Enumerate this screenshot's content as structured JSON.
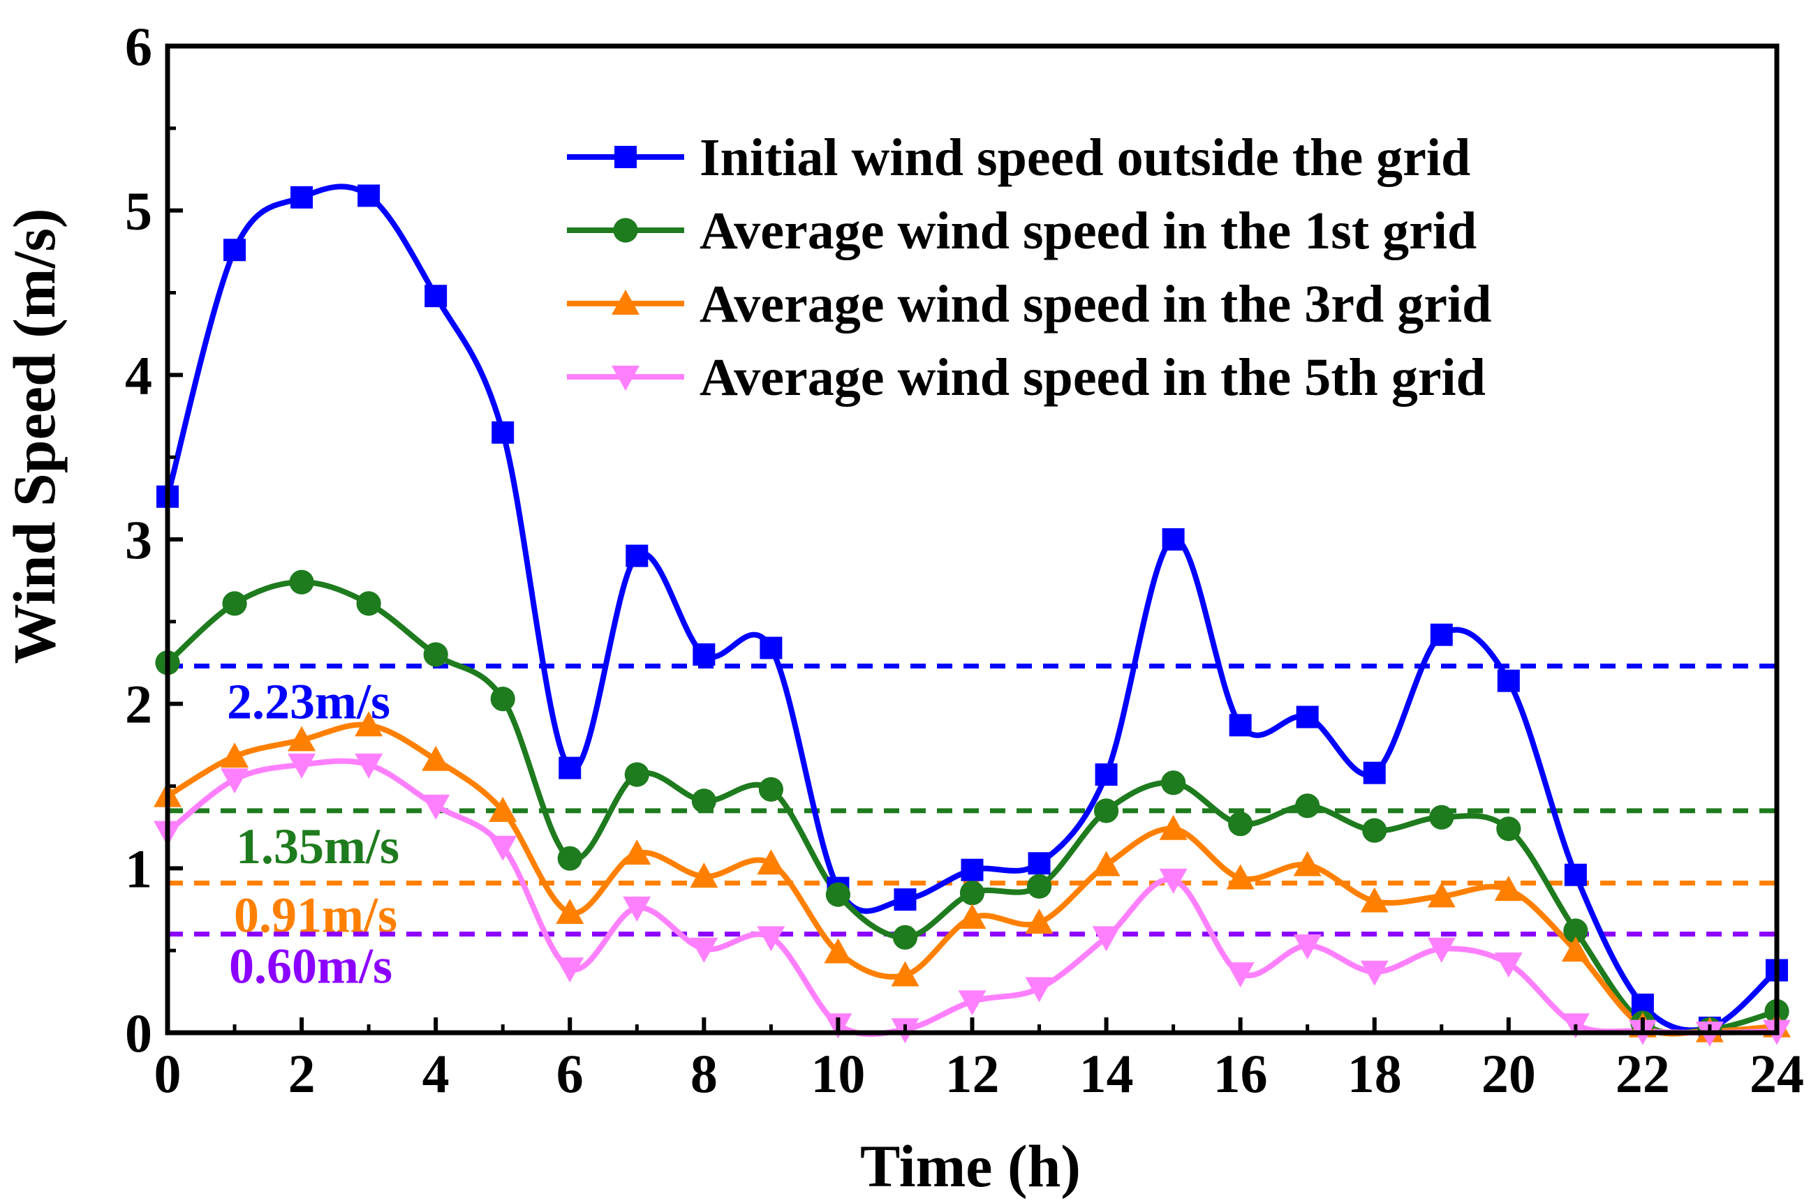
{
  "chart_data": {
    "type": "line",
    "xlabel": "Time (h)",
    "ylabel": "Wind Speed (m/s)",
    "xlim": [
      0,
      24
    ],
    "ylim": [
      0,
      6
    ],
    "xticks": [
      "0",
      "2",
      "4",
      "6",
      "8",
      "10",
      "12",
      "14",
      "16",
      "18",
      "20",
      "22",
      "24"
    ],
    "yticks": [
      "0",
      "1",
      "2",
      "3",
      "4",
      "5",
      "6"
    ],
    "x": [
      0,
      1,
      2,
      3,
      4,
      5,
      6,
      7,
      8,
      9,
      10,
      11,
      12,
      13,
      14,
      15,
      16,
      17,
      18,
      19,
      20,
      21,
      22,
      23,
      24
    ],
    "grid": false,
    "legend_position": "top-right",
    "series": [
      {
        "name": "Initial wind speed outside the grid",
        "color": "#0000FF",
        "marker": "square",
        "values": [
          3.26,
          4.76,
          5.08,
          5.09,
          4.48,
          3.65,
          1.61,
          2.9,
          2.3,
          2.34,
          0.88,
          0.81,
          0.99,
          1.03,
          1.57,
          3.0,
          1.87,
          1.92,
          1.58,
          2.42,
          2.14,
          0.96,
          0.17,
          0.03,
          0.38
        ]
      },
      {
        "name": "Average wind speed in the 1st grid",
        "color": "#1E7B1E",
        "marker": "circle",
        "values": [
          2.25,
          2.61,
          2.74,
          2.61,
          2.3,
          2.03,
          1.06,
          1.57,
          1.41,
          1.48,
          0.84,
          0.58,
          0.85,
          0.89,
          1.35,
          1.52,
          1.27,
          1.38,
          1.23,
          1.31,
          1.24,
          0.62,
          0.06,
          0.02,
          0.13
        ]
      },
      {
        "name": "Average wind speed in the 3rd grid",
        "color": "#FF8000",
        "marker": "triangle-up",
        "values": [
          1.44,
          1.68,
          1.78,
          1.87,
          1.66,
          1.35,
          0.73,
          1.09,
          0.95,
          1.03,
          0.49,
          0.35,
          0.7,
          0.67,
          1.02,
          1.24,
          0.94,
          1.02,
          0.8,
          0.83,
          0.87,
          0.5,
          0.04,
          0.01,
          0.04
        ]
      },
      {
        "name": "Average wind speed in the 5th grid",
        "color": "#FF80FF",
        "marker": "triangle-down",
        "values": [
          1.22,
          1.54,
          1.63,
          1.63,
          1.38,
          1.13,
          0.39,
          0.76,
          0.51,
          0.58,
          0.05,
          0.02,
          0.19,
          0.27,
          0.58,
          0.93,
          0.36,
          0.53,
          0.37,
          0.51,
          0.42,
          0.05,
          0.01,
          0.0,
          0.01
        ]
      }
    ],
    "reference_lines": [
      {
        "value": 2.23,
        "label": "2.23m/s",
        "color": "#0000FF"
      },
      {
        "value": 1.35,
        "label": "1.35m/s",
        "color": "#1E7B1E"
      },
      {
        "value": 0.91,
        "label": "0.91m/s",
        "color": "#FF8000"
      },
      {
        "value": 0.6,
        "label": "0.60m/s",
        "color": "#8B00FF"
      }
    ]
  }
}
